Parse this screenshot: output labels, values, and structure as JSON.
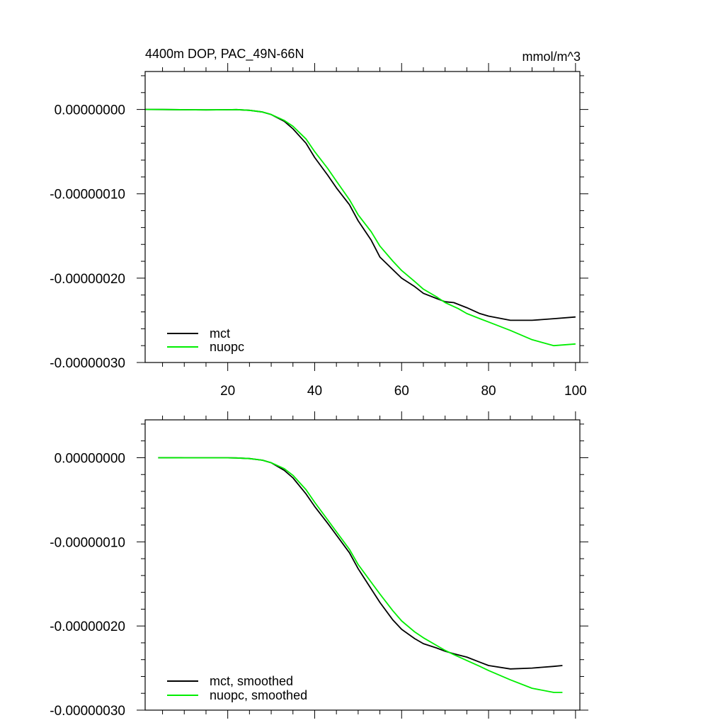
{
  "chart_data": [
    {
      "type": "line",
      "title": "4400m DOP, PAC_49N-66N",
      "units": "mmol/m^3",
      "xlabel": "",
      "ylabel": "",
      "xlim": [
        1,
        101
      ],
      "ylim": [
        -3e-07,
        4.5e-08
      ],
      "x_ticks": [
        20,
        40,
        60,
        80,
        100
      ],
      "x_tick_labels": [
        "20",
        "40",
        "60",
        "80",
        "100"
      ],
      "y_ticks": [
        0,
        -1e-07,
        -2e-07,
        -3e-07
      ],
      "y_tick_labels": [
        "0.00000000",
        "-0.00000010",
        "-0.00000020",
        "-0.00000030"
      ],
      "legend_position": "bottom-left",
      "grid": false,
      "series": [
        {
          "name": "mct",
          "color": "#000000",
          "x": [
            1,
            5,
            10,
            15,
            20,
            22,
            25,
            28,
            30,
            33,
            35,
            38,
            40,
            43,
            45,
            48,
            50,
            53,
            55,
            58,
            60,
            63,
            65,
            68,
            70,
            72,
            75,
            78,
            80,
            85,
            90,
            95,
            100
          ],
          "y": [
            0,
            -1e-10,
            -3e-10,
            -5e-10,
            -3e-10,
            -2e-10,
            -1e-09,
            -3e-09,
            -6e-09,
            -1.4e-08,
            -2.3e-08,
            -4e-08,
            -5.7e-08,
            -7.8e-08,
            -9.3e-08,
            -1.13e-07,
            -1.32e-07,
            -1.55e-07,
            -1.75e-07,
            -1.9e-07,
            -2e-07,
            -2.1e-07,
            -2.18e-07,
            -2.24e-07,
            -2.28e-07,
            -2.29e-07,
            -2.35e-07,
            -2.42e-07,
            -2.45e-07,
            -2.5e-07,
            -2.5e-07,
            -2.48e-07,
            -2.46e-07
          ]
        },
        {
          "name": "nuopc",
          "color": "#00ee00",
          "x": [
            1,
            5,
            10,
            15,
            20,
            22,
            25,
            28,
            30,
            33,
            35,
            38,
            40,
            43,
            45,
            48,
            50,
            53,
            55,
            58,
            60,
            63,
            65,
            68,
            70,
            73,
            75,
            78,
            80,
            85,
            90,
            95,
            100
          ],
          "y": [
            0,
            -1e-10,
            -3e-10,
            -5e-10,
            -3e-10,
            -2e-10,
            -1e-09,
            -3e-09,
            -6e-09,
            -1.3e-08,
            -2e-08,
            -3.5e-08,
            -5e-08,
            -7e-08,
            -8.5e-08,
            -1.07e-07,
            -1.25e-07,
            -1.45e-07,
            -1.62e-07,
            -1.8e-07,
            -1.91e-07,
            -2.04e-07,
            -2.13e-07,
            -2.22e-07,
            -2.29e-07,
            -2.36e-07,
            -2.42e-07,
            -2.48e-07,
            -2.52e-07,
            -2.62e-07,
            -2.73e-07,
            -2.8e-07,
            -2.78e-07
          ]
        }
      ]
    },
    {
      "type": "line",
      "title": "",
      "xlabel": "",
      "ylabel": "",
      "xlim": [
        1,
        101
      ],
      "ylim": [
        -3e-07,
        4.5e-08
      ],
      "x_ticks": [
        20,
        40,
        60,
        80,
        100
      ],
      "x_tick_labels": [],
      "y_ticks": [
        0,
        -1e-07,
        -2e-07,
        -3e-07
      ],
      "y_tick_labels": [
        "0.00000000",
        "-0.00000010",
        "-0.00000020",
        "-0.00000030"
      ],
      "legend_position": "bottom-left",
      "grid": false,
      "series": [
        {
          "name": "mct, smoothed",
          "color": "#000000",
          "x": [
            4,
            10,
            15,
            20,
            22,
            25,
            28,
            30,
            33,
            35,
            38,
            40,
            43,
            45,
            48,
            50,
            53,
            55,
            58,
            60,
            63,
            65,
            68,
            70,
            72,
            75,
            78,
            80,
            85,
            90,
            95,
            97
          ],
          "y": [
            0,
            -1e-10,
            -1e-10,
            -1e-10,
            -3e-10,
            -1e-09,
            -3e-09,
            -6e-09,
            -1.5e-08,
            -2.4e-08,
            -4.3e-08,
            -5.8e-08,
            -7.8e-08,
            -9.2e-08,
            -1.13e-07,
            -1.32e-07,
            -1.56e-07,
            -1.72e-07,
            -1.93e-07,
            -2.04e-07,
            -2.15e-07,
            -2.21e-07,
            -2.26e-07,
            -2.3e-07,
            -2.33e-07,
            -2.37e-07,
            -2.43e-07,
            -2.47e-07,
            -2.51e-07,
            -2.5e-07,
            -2.48e-07,
            -2.47e-07
          ]
        },
        {
          "name": "nuopc, smoothed",
          "color": "#00ee00",
          "x": [
            4,
            10,
            15,
            20,
            22,
            25,
            28,
            30,
            33,
            35,
            38,
            40,
            43,
            45,
            48,
            50,
            53,
            55,
            58,
            60,
            63,
            65,
            68,
            70,
            72,
            75,
            78,
            80,
            85,
            90,
            95,
            97
          ],
          "y": [
            0,
            -1e-10,
            -1e-10,
            -1e-10,
            -3e-10,
            -1e-09,
            -3e-09,
            -6e-09,
            -1.3e-08,
            -2.1e-08,
            -3.8e-08,
            -5.3e-08,
            -7.4e-08,
            -8.8e-08,
            -1.09e-07,
            -1.27e-07,
            -1.48e-07,
            -1.62e-07,
            -1.82e-07,
            -1.94e-07,
            -2.07e-07,
            -2.14e-07,
            -2.23e-07,
            -2.29e-07,
            -2.34e-07,
            -2.41e-07,
            -2.48e-07,
            -2.53e-07,
            -2.64e-07,
            -2.74e-07,
            -2.79e-07,
            -2.79e-07
          ]
        }
      ]
    }
  ]
}
